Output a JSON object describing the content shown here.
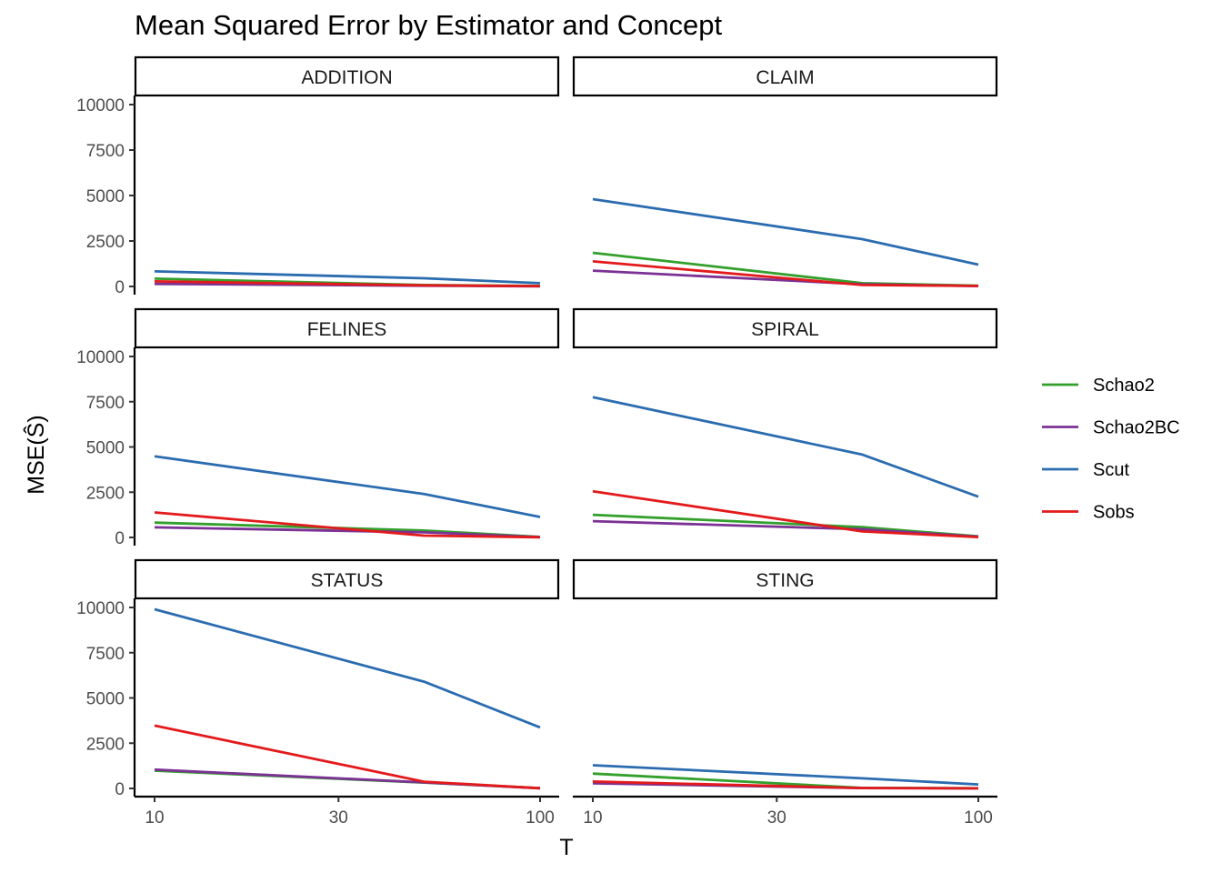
{
  "chart_data": {
    "type": "line",
    "title": "Mean Squared Error by Estimator and Concept",
    "xlabel": "T",
    "ylabel": "MSE(Ŝ)",
    "x_scale": "log",
    "xlim": [
      10,
      100
    ],
    "ylim": [
      0,
      10000
    ],
    "x_ticks": [
      10,
      30,
      100
    ],
    "y_ticks": [
      0,
      2500,
      5000,
      7500,
      10000
    ],
    "x": [
      10,
      50,
      100
    ],
    "legend_position": "right",
    "grid": false,
    "series_styles": [
      {
        "name": "Schao2",
        "color": "#33a02c"
      },
      {
        "name": "Schao2BC",
        "color": "#7b3294"
      },
      {
        "name": "Scut",
        "color": "#2b6cb0"
      },
      {
        "name": "Sobs",
        "color": "#e31a1c"
      }
    ],
    "panels": [
      {
        "label": "ADDITION",
        "series": [
          {
            "name": "Schao2",
            "values": [
              430,
              80,
              30
            ]
          },
          {
            "name": "Schao2BC",
            "values": [
              140,
              40,
              10
            ]
          },
          {
            "name": "Scut",
            "values": [
              830,
              450,
              180
            ]
          },
          {
            "name": "Sobs",
            "values": [
              280,
              60,
              20
            ]
          }
        ]
      },
      {
        "label": "CLAIM",
        "series": [
          {
            "name": "Schao2",
            "values": [
              1850,
              180,
              40
            ]
          },
          {
            "name": "Schao2BC",
            "values": [
              870,
              120,
              20
            ]
          },
          {
            "name": "Scut",
            "values": [
              4800,
              2600,
              1200
            ]
          },
          {
            "name": "Sobs",
            "values": [
              1380,
              80,
              30
            ]
          }
        ]
      },
      {
        "label": "FELINES",
        "series": [
          {
            "name": "Schao2",
            "values": [
              820,
              380,
              30
            ]
          },
          {
            "name": "Schao2BC",
            "values": [
              560,
              280,
              20
            ]
          },
          {
            "name": "Scut",
            "values": [
              4480,
              2400,
              1130
            ]
          },
          {
            "name": "Sobs",
            "values": [
              1380,
              100,
              10
            ]
          }
        ]
      },
      {
        "label": "SPIRAL",
        "series": [
          {
            "name": "Schao2",
            "values": [
              1250,
              570,
              60
            ]
          },
          {
            "name": "Schao2BC",
            "values": [
              900,
              450,
              40
            ]
          },
          {
            "name": "Scut",
            "values": [
              7750,
              4580,
              2250
            ]
          },
          {
            "name": "Sobs",
            "values": [
              2550,
              330,
              20
            ]
          }
        ]
      },
      {
        "label": "STATUS",
        "series": [
          {
            "name": "Schao2",
            "values": [
              980,
              320,
              20
            ]
          },
          {
            "name": "Schao2BC",
            "values": [
              1040,
              330,
              10
            ]
          },
          {
            "name": "Scut",
            "values": [
              9900,
              5900,
              3370
            ]
          },
          {
            "name": "Sobs",
            "values": [
              3470,
              370,
              10
            ]
          }
        ]
      },
      {
        "label": "STING",
        "series": [
          {
            "name": "Schao2",
            "values": [
              820,
              30,
              10
            ]
          },
          {
            "name": "Schao2BC",
            "values": [
              280,
              20,
              5
            ]
          },
          {
            "name": "Scut",
            "values": [
              1280,
              560,
              220
            ]
          },
          {
            "name": "Sobs",
            "values": [
              380,
              20,
              5
            ]
          }
        ]
      }
    ]
  }
}
